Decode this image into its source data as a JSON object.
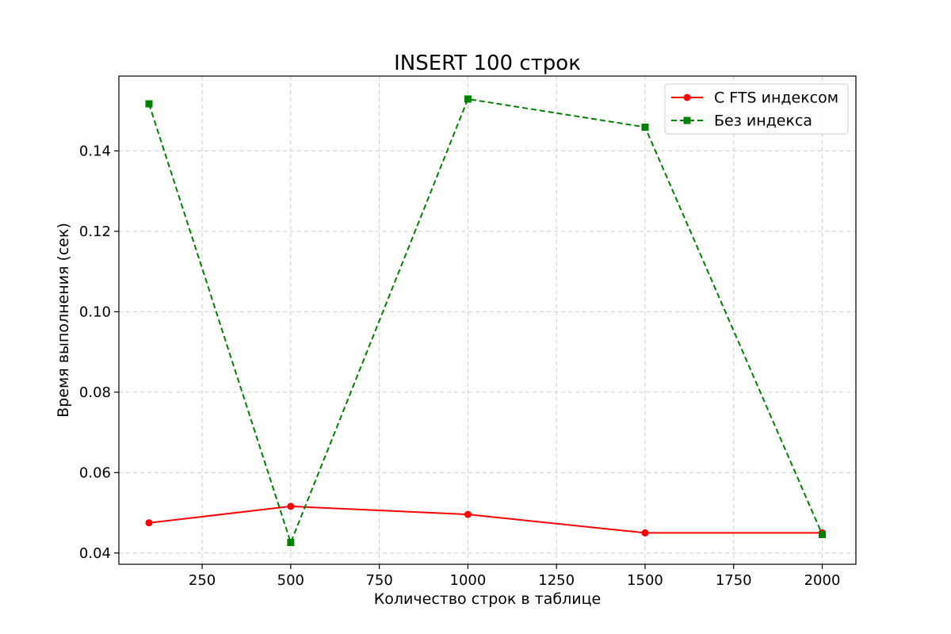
{
  "chart_data": {
    "type": "line",
    "title": "INSERT 100 строк",
    "xlabel": "Количество строк в таблице",
    "ylabel": "Время выполнения (сек)",
    "xlim": [
      15,
      2095
    ],
    "ylim": [
      0.0372,
      0.1586
    ],
    "x_ticks": [
      {
        "value": 250,
        "label": "250"
      },
      {
        "value": 500,
        "label": "500"
      },
      {
        "value": 750,
        "label": "750"
      },
      {
        "value": 1000,
        "label": "1000"
      },
      {
        "value": 1250,
        "label": "1250"
      },
      {
        "value": 1500,
        "label": "1500"
      },
      {
        "value": 1750,
        "label": "1750"
      },
      {
        "value": 2000,
        "label": "2000"
      }
    ],
    "y_ticks": [
      {
        "value": 0.04,
        "label": "0.04"
      },
      {
        "value": 0.06,
        "label": "0.06"
      },
      {
        "value": 0.08,
        "label": "0.08"
      },
      {
        "value": 0.1,
        "label": "0.10"
      },
      {
        "value": 0.12,
        "label": "0.12"
      },
      {
        "value": 0.14,
        "label": "0.14"
      }
    ],
    "grid": true,
    "legend_position": "top-right",
    "x": [
      100,
      500,
      1000,
      1500,
      2000
    ],
    "series": [
      {
        "name": "С FTS индексом",
        "color": "#ff0000",
        "marker": "circle",
        "line_style": "solid",
        "values": [
          0.0475,
          0.0516,
          0.0496,
          0.045,
          0.045
        ]
      },
      {
        "name": "Без индекса",
        "color": "#008000",
        "marker": "square",
        "line_style": "dashed",
        "values": [
          0.1517,
          0.0426,
          0.1529,
          0.1459,
          0.0446
        ]
      }
    ]
  }
}
